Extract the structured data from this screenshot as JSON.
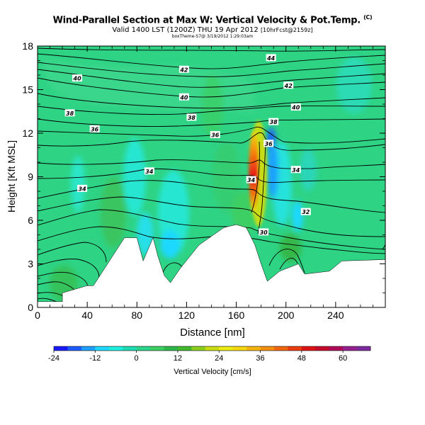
{
  "header": {
    "title": "Wind-Parallel Section at Max W: Vertical Velocity & Pot.Temp.",
    "title_mark": "(C)",
    "subtitle_main": "Valid 1400 LST (1200Z) THU 19 Apr 2012",
    "subtitle_tail": "[10hrFcst@2159z]",
    "byline": "boxTheme-S7@ 3/19/2012 1:29:03am"
  },
  "chart_data": {
    "type": "cross-section",
    "xlabel": "Distance [nm]",
    "ylabel": "Height [Kft MSL]",
    "xlim": [
      0,
      280
    ],
    "ylim": [
      0,
      18
    ],
    "x_ticks": [
      0,
      40,
      80,
      120,
      160,
      200,
      240
    ],
    "y_ticks": [
      0,
      3,
      6,
      9,
      12,
      15,
      18
    ],
    "terrain": [
      [
        0,
        0.4
      ],
      [
        20,
        0.4
      ],
      [
        20,
        1
      ],
      [
        40,
        1.5
      ],
      [
        45,
        1.5
      ],
      [
        70,
        4.8
      ],
      [
        80,
        4.8
      ],
      [
        85,
        3.2
      ],
      [
        93,
        4.8
      ],
      [
        97,
        3.5
      ],
      [
        102,
        2.2
      ],
      [
        107,
        1.7
      ],
      [
        115,
        2.7
      ],
      [
        130,
        4.3
      ],
      [
        150,
        5.5
      ],
      [
        160,
        5.7
      ],
      [
        168,
        5.5
      ],
      [
        175,
        4.3
      ],
      [
        180,
        3
      ],
      [
        185,
        1.8
      ],
      [
        195,
        2.5
      ],
      [
        210,
        3
      ],
      [
        215,
        2.3
      ],
      [
        235,
        2.5
      ],
      [
        245,
        3.2
      ],
      [
        280,
        3.3
      ]
    ],
    "isentropes": [
      {
        "label": "44",
        "label_x": 188,
        "label_y": 17.2
      },
      {
        "label": "42",
        "label_x": 118,
        "label_y": 16.4
      },
      {
        "label": "42",
        "label_x": 202,
        "label_y": 15.3
      },
      {
        "label": "40",
        "label_x": 32,
        "label_y": 15.8
      },
      {
        "label": "40",
        "label_x": 118,
        "label_y": 14.5
      },
      {
        "label": "40",
        "label_x": 208,
        "label_y": 13.8
      },
      {
        "label": "38",
        "label_x": 26,
        "label_y": 13.4
      },
      {
        "label": "38",
        "label_x": 124,
        "label_y": 13.1
      },
      {
        "label": "38",
        "label_x": 190,
        "label_y": 12.8
      },
      {
        "label": "36",
        "label_x": 46,
        "label_y": 12.3
      },
      {
        "label": "36",
        "label_x": 143,
        "label_y": 11.9
      },
      {
        "label": "36",
        "label_x": 186,
        "label_y": 11.3
      },
      {
        "label": "34",
        "label_x": 90,
        "label_y": 9.4
      },
      {
        "label": "34",
        "label_x": 208,
        "label_y": 9.5
      },
      {
        "label": "34",
        "label_x": 172,
        "label_y": 8.8
      },
      {
        "label": "34",
        "label_x": 36,
        "label_y": 8.2
      },
      {
        "label": "32",
        "label_x": 216,
        "label_y": 6.6
      },
      {
        "label": "30",
        "label_x": 182,
        "label_y": 5.2
      }
    ],
    "updraft_max": {
      "x": 174,
      "y_range": [
        6.5,
        12.2
      ],
      "value": 60
    },
    "colorbar": {
      "label": "Vertical Velocity [cm/s]",
      "range": [
        -24,
        68
      ],
      "ticks": [
        -24,
        -12,
        0,
        12,
        24,
        36,
        48,
        60
      ],
      "colors": [
        "#1a1aff",
        "#1e5cff",
        "#1ea0ff",
        "#1ed8ff",
        "#1ef0e0",
        "#1edcb4",
        "#2bd68a",
        "#3ccf63",
        "#2fb84a",
        "#42ba2e",
        "#8ccf1e",
        "#c8dd12",
        "#ecec12",
        "#f5d80f",
        "#f5b40f",
        "#f5900f",
        "#f2660f",
        "#ed3c10",
        "#e01414",
        "#c80a2a",
        "#b00a5a",
        "#962090",
        "#7f2aa0"
      ]
    }
  }
}
